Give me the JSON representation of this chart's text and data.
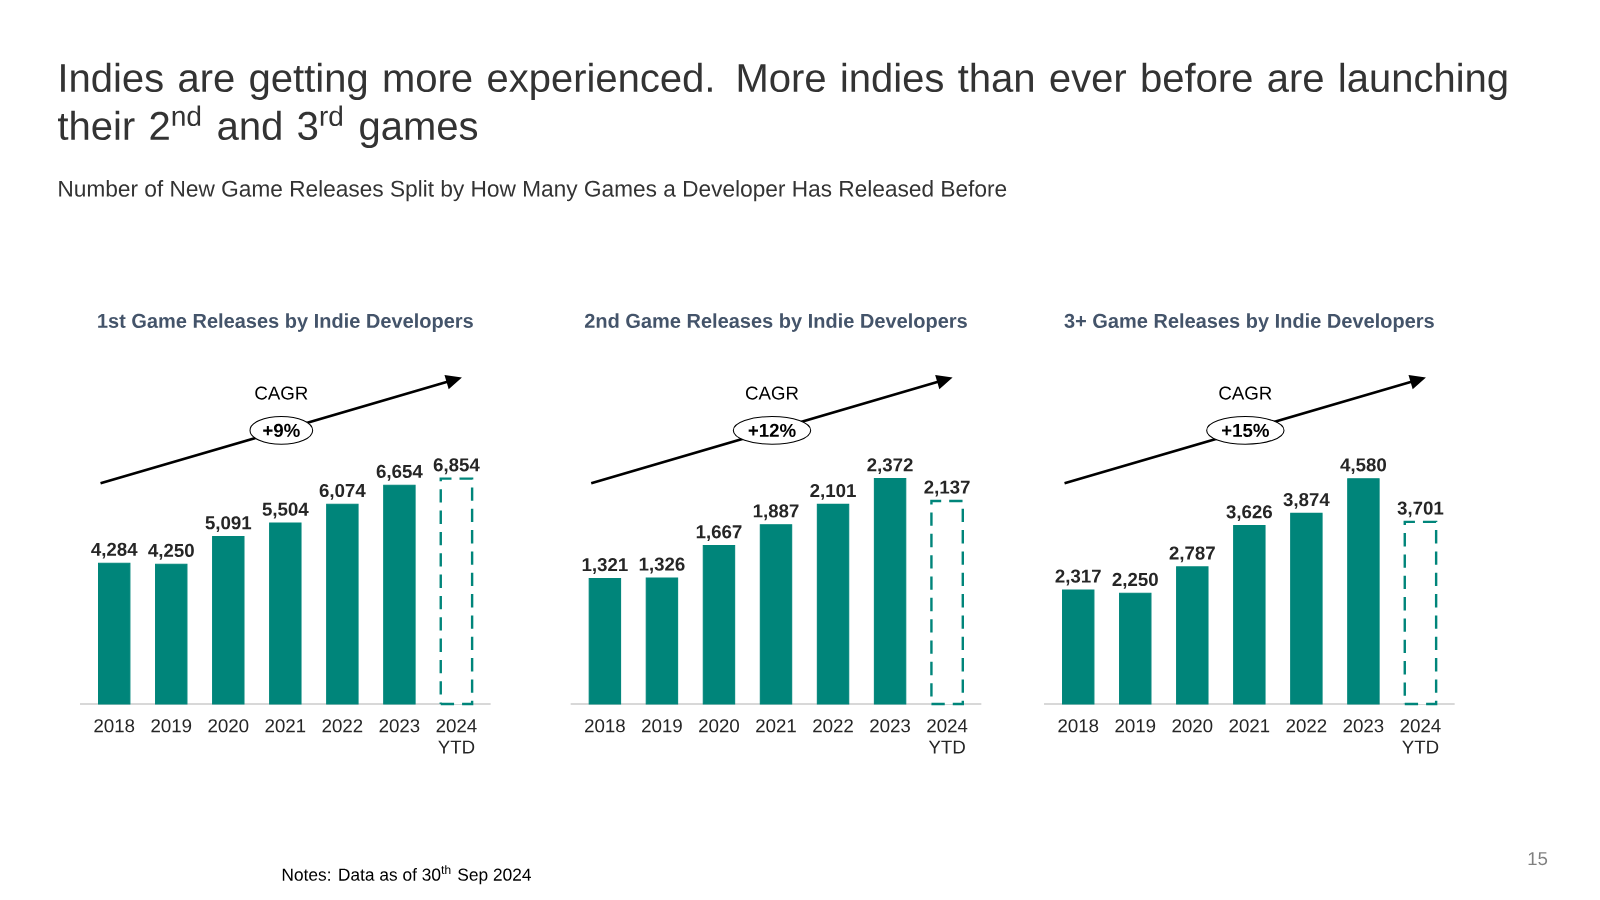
{
  "chart_data": [
    {
      "type": "other",
      "title": "Indies are getting more experienced. More indies than ever before are launching their 2$^{nd}$ and 3$^{rd}$ games",
      "subtitle": "Number of New Game Releases Split by How Many Games a Developer Has Released Before",
      "annotations": [
        "Notes: Data as of 30$^{th}$ Sep 2024",
        "15"
      ]
    },
    {
      "type": "bar",
      "title": "1st Game Releases by Indie Developers",
      "categories": [
        "2018",
        "2019",
        "2020",
        "2021",
        "2022",
        "2023",
        "2024 YTD"
      ],
      "annotations": [
        "CAGR",
        "+9%"
      ],
      "series": [
        {
          "color": "#00857a",
          "values": [
            4284,
            4250,
            5091,
            5504,
            6074,
            6654,
            null
          ],
          "value_labels": [
            "4,284",
            "4,250",
            "5,091",
            "5,504",
            "6,074",
            "6,654",
            null
          ]
        },
        {
          "color": "#00857a",
          "line_style": "dashed",
          "values": [
            null,
            null,
            null,
            null,
            null,
            null,
            6854
          ],
          "value_labels": [
            null,
            null,
            null,
            null,
            null,
            null,
            "6,854"
          ]
        }
      ]
    },
    {
      "type": "bar",
      "title": "2nd Game Releases by Indie Developers",
      "categories": [
        "2018",
        "2019",
        "2020",
        "2021",
        "2022",
        "2023",
        "2024 YTD"
      ],
      "annotations": [
        "CAGR",
        "+12%"
      ],
      "series": [
        {
          "color": "#00857a",
          "values": [
            1321,
            1326,
            1667,
            1887,
            2101,
            2372,
            null
          ],
          "value_labels": [
            "1,321",
            "1,326",
            "1,667",
            "1,887",
            "2,101",
            "2,372",
            null
          ]
        },
        {
          "color": "#00857a",
          "line_style": "dashed",
          "values": [
            null,
            null,
            null,
            null,
            null,
            null,
            2137
          ],
          "value_labels": [
            null,
            null,
            null,
            null,
            null,
            null,
            "2,137"
          ]
        }
      ]
    },
    {
      "type": "bar",
      "title": "3+ Game Releases by Indie Developers",
      "categories": [
        "2018",
        "2019",
        "2020",
        "2021",
        "2022",
        "2023",
        "2024 YTD"
      ],
      "annotations": [
        "CAGR",
        "+15%"
      ],
      "series": [
        {
          "color": "#00857a",
          "values": [
            2317,
            2250,
            2787,
            3626,
            3874,
            4580,
            null
          ],
          "value_labels": [
            "2,317",
            "2,250",
            "2,787",
            "3,626",
            "3,874",
            "4,580",
            null
          ]
        },
        {
          "color": "#00857a",
          "line_style": "dashed",
          "values": [
            null,
            null,
            null,
            null,
            null,
            null,
            3701
          ],
          "value_labels": [
            null,
            null,
            null,
            null,
            null,
            null,
            "3,701"
          ]
        }
      ]
    }
  ]
}
